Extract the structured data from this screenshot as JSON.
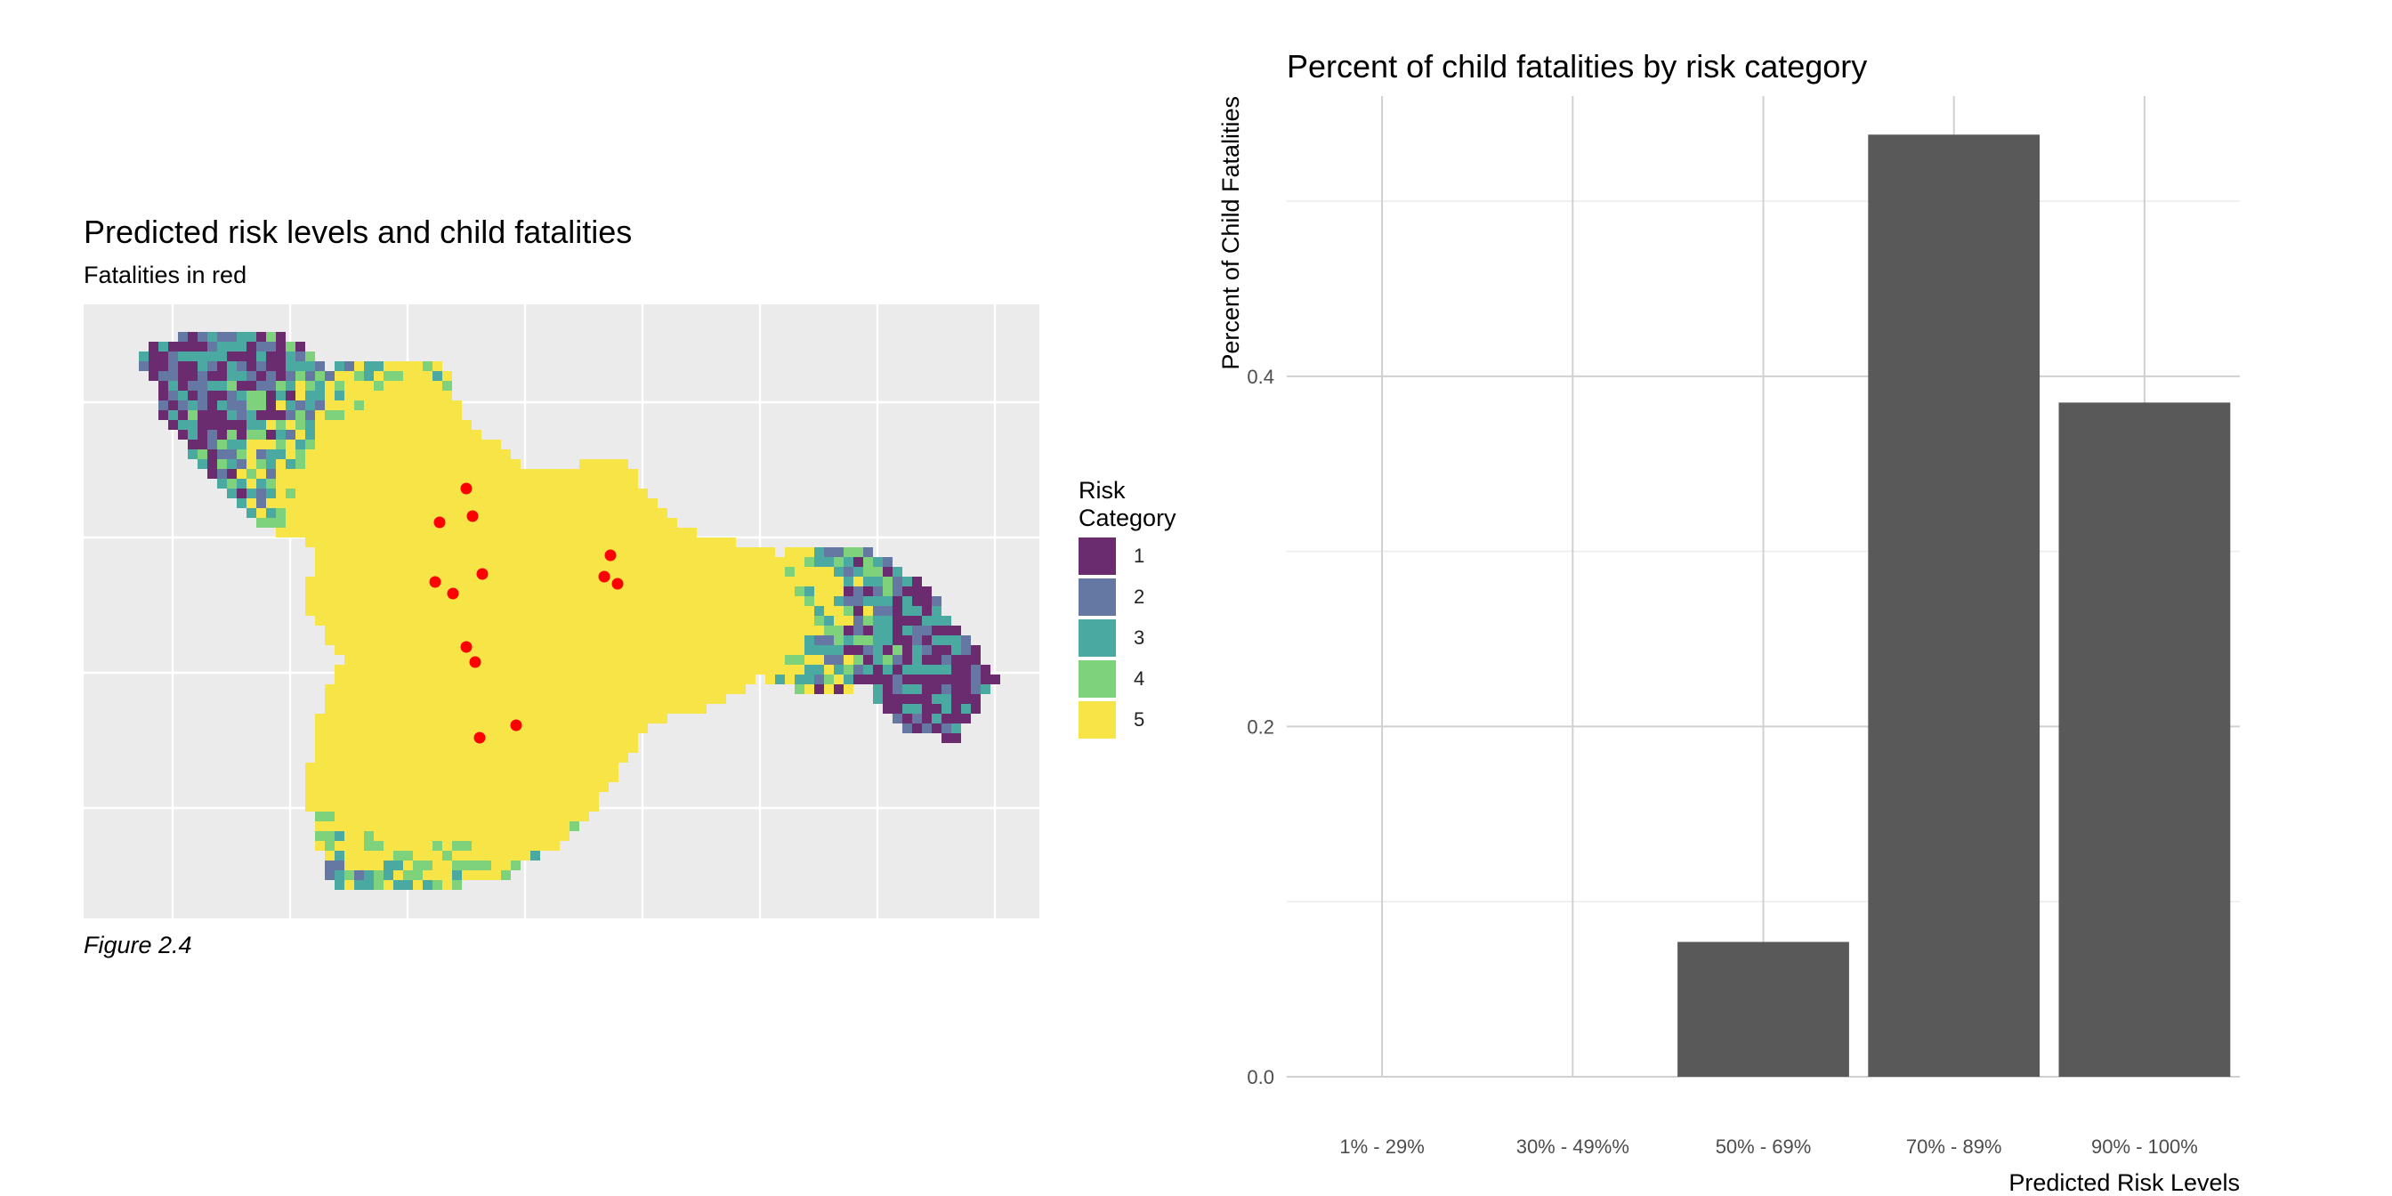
{
  "chart_data": [
    {
      "type": "heatmap",
      "title": "Predicted risk levels and child fatalities",
      "subtitle": "Fatalities in red",
      "caption": "Figure 2.4",
      "legend": {
        "title_lines": [
          "Risk",
          "Category"
        ],
        "position": "right",
        "items": [
          {
            "label": "1",
            "color": "#6b2c6f"
          },
          {
            "label": "2",
            "color": "#6577a3"
          },
          {
            "label": "3",
            "color": "#4aa9a0"
          },
          {
            "label": "4",
            "color": "#7ed27c"
          },
          {
            "label": "5",
            "color": "#f7e447"
          }
        ]
      },
      "panel_background": "#ebebeb",
      "fatality_color": "#ff0000",
      "grid": true
    },
    {
      "type": "bar",
      "title": "Percent of child fatalities by risk category",
      "xlabel": "Predicted Risk Levels",
      "ylabel": "Percent of Child Fatalities",
      "categories": [
        "1% - 29%",
        "30% - 49%%",
        "50% - 69%",
        "70% - 89%",
        "90% - 100%"
      ],
      "values": [
        0,
        0,
        0.077,
        0.538,
        0.385
      ],
      "ylim": [
        0,
        0.56
      ],
      "yticks": [
        0.0,
        0.2,
        0.4
      ],
      "bar_color": "#595959",
      "grid": true
    }
  ]
}
